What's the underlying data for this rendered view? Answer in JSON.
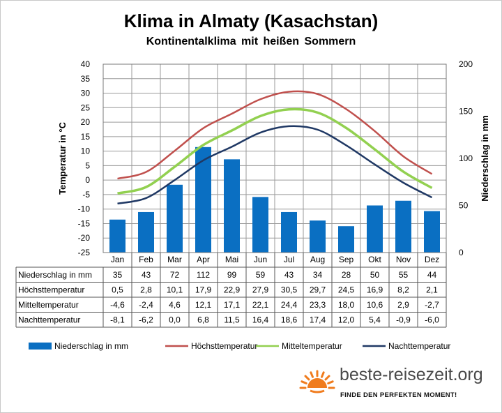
{
  "chart_data": {
    "type": "bar-line-combo",
    "title": "Klima in Almaty (Kasachstan)",
    "subtitle": "Kontinentalklima mit heißen Sommern",
    "categories": [
      "Jan",
      "Feb",
      "Mar",
      "Apr",
      "Mai",
      "Jun",
      "Jul",
      "Aug",
      "Sep",
      "Okt",
      "Nov",
      "Dez"
    ],
    "ylabel_left": "Temperatur in °C",
    "ylabel_right": "Niederschlag in mm",
    "ylim_left": [
      -25,
      40
    ],
    "ylim_right": [
      0,
      200
    ],
    "yticks_left": [
      "40",
      "35",
      "30",
      "25",
      "20",
      "15",
      "10",
      "5",
      "0",
      "-5",
      "-10",
      "-15",
      "-20",
      "-25"
    ],
    "yticks_right": [
      "200",
      "150",
      "100",
      "50",
      "0"
    ],
    "grid": true,
    "series": [
      {
        "name": "Niederschlag in mm",
        "kind": "bar",
        "axis": "right",
        "color": "#0a6fc2",
        "values": [
          35,
          43,
          72,
          112,
          99,
          59,
          43,
          34,
          28,
          50,
          55,
          44
        ]
      },
      {
        "name": "Höchsttemperatur",
        "kind": "line",
        "axis": "left",
        "color": "#c0504d",
        "values": [
          0.5,
          2.8,
          10.1,
          17.9,
          22.9,
          27.9,
          30.5,
          29.7,
          24.5,
          16.9,
          8.2,
          2.1
        ]
      },
      {
        "name": "Mitteltemperatur",
        "kind": "line",
        "axis": "left",
        "color": "#92d050",
        "values": [
          -4.6,
          -2.4,
          4.6,
          12.1,
          17.1,
          22.1,
          24.4,
          23.3,
          18.0,
          10.6,
          2.9,
          -2.7
        ]
      },
      {
        "name": "Nachttemperatur",
        "kind": "line",
        "axis": "left",
        "color": "#1f3864",
        "values": [
          -8.1,
          -6.2,
          0.0,
          6.8,
          11.5,
          16.4,
          18.6,
          17.4,
          12.0,
          5.4,
          -0.9,
          -6.0
        ]
      }
    ],
    "table": {
      "rows": [
        {
          "label": "Niederschlag in mm",
          "cells": [
            "35",
            "43",
            "72",
            "112",
            "99",
            "59",
            "43",
            "34",
            "28",
            "50",
            "55",
            "44"
          ]
        },
        {
          "label": "Höchsttemperatur",
          "cells": [
            "0,5",
            "2,8",
            "10,1",
            "17,9",
            "22,9",
            "27,9",
            "30,5",
            "29,7",
            "24,5",
            "16,9",
            "8,2",
            "2,1"
          ]
        },
        {
          "label": "Mitteltemperatur",
          "cells": [
            "-4,6",
            "-2,4",
            "4,6",
            "12,1",
            "17,1",
            "22,1",
            "24,4",
            "23,3",
            "18,0",
            "10,6",
            "2,9",
            "-2,7"
          ]
        },
        {
          "label": "Nachttemperatur",
          "cells": [
            "-8,1",
            "-6,2",
            "0,0",
            "6,8",
            "11,5",
            "16,4",
            "18,6",
            "17,4",
            "12,0",
            "5,4",
            "-0,9",
            "-6,0"
          ]
        }
      ]
    },
    "legend_position": "bottom"
  },
  "branding": {
    "name": "beste-reisezeit.org",
    "slogan": "FINDE DEN PERFEKTEN MOMENT!",
    "logo": "sun-icon",
    "logo_color": "#f07c1e"
  }
}
